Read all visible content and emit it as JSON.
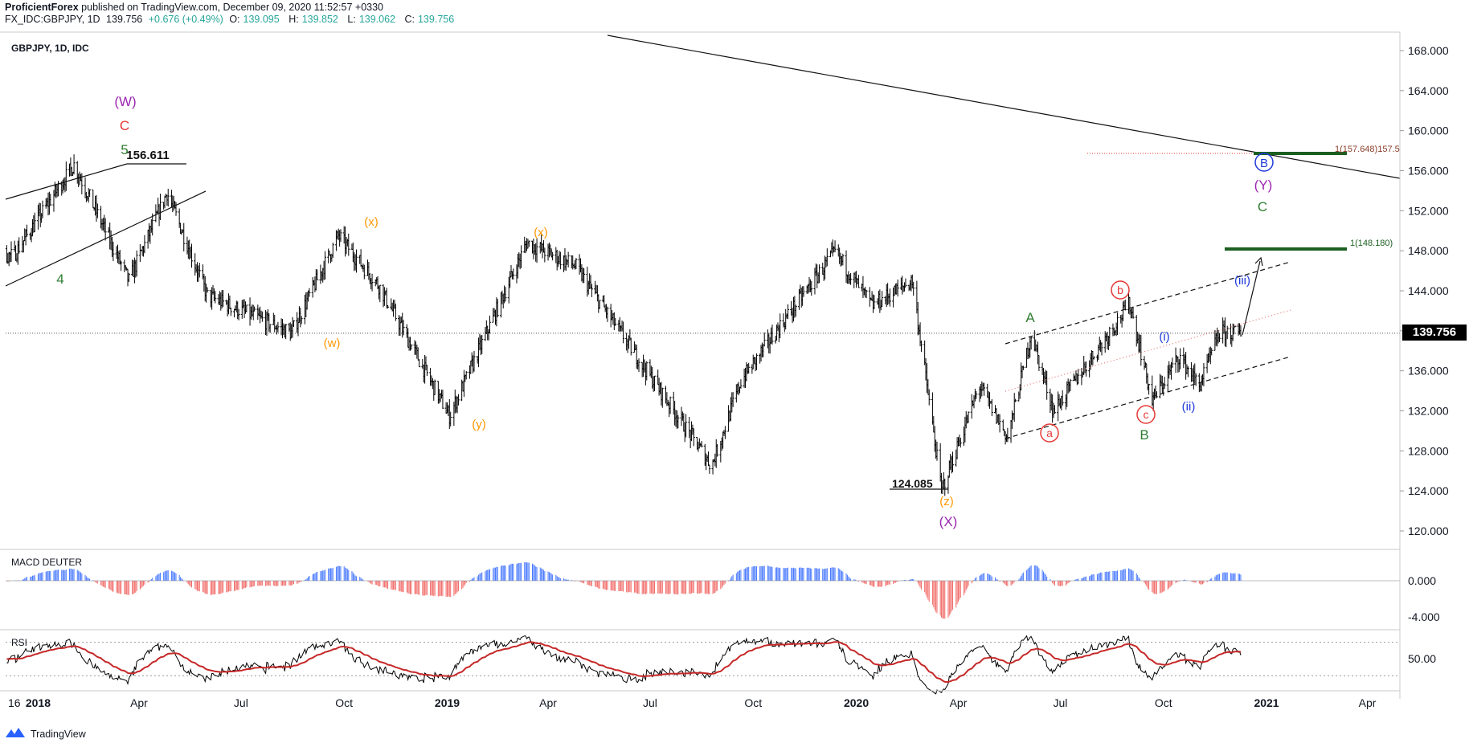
{
  "header": {
    "publisher": "ProficientForex",
    "published_text": "published on TradingView.com, December 09, 2020 11:52:57 +0330",
    "symbol": "FX_IDC:GBPJPY, 1D",
    "last": "139.756",
    "change": "+0.676 (+0.49%)",
    "o_label": "O:",
    "o_value": "139.095",
    "h_label": "H:",
    "h_value": "139.852",
    "l_label": "L:",
    "l_value": "139.062",
    "c_label": "C:",
    "c_value": "139.756",
    "pane_title": "GBPJPY, 1D, IDC"
  },
  "price_axis": {
    "ticks": [
      "168.000",
      "164.000",
      "160.000",
      "156.000",
      "152.000",
      "148.000",
      "144.000",
      "140.000",
      "136.000",
      "132.000",
      "128.000",
      "124.000",
      "120.000"
    ],
    "last_price": "139.756"
  },
  "macd": {
    "title": "MACD DEUTER",
    "ticks": [
      "0.000",
      "-4.000"
    ]
  },
  "rsi": {
    "title": "RSI",
    "ticks": [
      "50.00"
    ]
  },
  "time_axis": [
    "16",
    "2018",
    "Apr",
    "Jul",
    "Oct",
    "2019",
    "Apr",
    "Jul",
    "Oct",
    "2020",
    "Apr",
    "Jul",
    "Oct",
    "2021",
    "Apr"
  ],
  "annotations": {
    "high_label": "156.611",
    "low_label": "124.085",
    "fib_label_1": "1(157.648)157.5",
    "fib_label_2": "1(148.180)",
    "W": "(W)",
    "C_red": "C",
    "five": "5",
    "four": "4",
    "x1": "(x)",
    "w": "(w)",
    "x2": "(x)",
    "y": "(y)",
    "z": "(z)",
    "X": "(X)",
    "A": "A",
    "a": "a",
    "b": "b",
    "c": "c",
    "B_green": "B",
    "i": "(i)",
    "ii": "(ii)",
    "iii": "(iii)",
    "B_circle": "B",
    "Y": "(Y)",
    "C_green": "C"
  },
  "footer": {
    "brand": "TradingView"
  },
  "colors": {
    "up": "#26a69a",
    "macd_pos": "#2962ff",
    "macd_neg": "#ef5350",
    "purple": "#9c27b0",
    "orange": "#ff9800",
    "green": "#2e7d32",
    "red": "#e53935",
    "blue": "#1e3adb"
  },
  "chart_data": {
    "type": "ohlc",
    "symbol": "GBPJPY",
    "timeframe": "1D",
    "x_range": [
      "2017-12",
      "2021-04"
    ],
    "y_range": [
      118,
      170
    ],
    "swing_points": [
      {
        "date": "2017-10-25",
        "price": 148.0
      },
      {
        "date": "2017-12-10",
        "price": 147.5
      },
      {
        "date": "2018-02-02",
        "price": 156.611,
        "label": "(W) C 5"
      },
      {
        "date": "2018-03-23",
        "price": 145.0
      },
      {
        "date": "2018-04-26",
        "price": 153.8
      },
      {
        "date": "2018-06-01",
        "price": 143.5
      },
      {
        "date": "2018-08-15",
        "price": 139.8,
        "label": "(w)"
      },
      {
        "date": "2018-09-26",
        "price": 149.5,
        "label": "(x)"
      },
      {
        "date": "2018-11-01",
        "price": 144.5
      },
      {
        "date": "2019-01-03",
        "price": 131.5,
        "label": "(y)"
      },
      {
        "date": "2019-03-13",
        "price": 148.8,
        "label": "(x)"
      },
      {
        "date": "2019-04-25",
        "price": 146.5
      },
      {
        "date": "2019-08-25",
        "price": 126.5
      },
      {
        "date": "2019-09-20",
        "price": 135.0
      },
      {
        "date": "2019-10-25",
        "price": 140.5
      },
      {
        "date": "2019-12-13",
        "price": 147.9
      },
      {
        "date": "2020-01-15",
        "price": 142.5
      },
      {
        "date": "2020-02-20",
        "price": 145.0
      },
      {
        "date": "2020-03-17",
        "price": 124.085,
        "label": "(z) (X)"
      },
      {
        "date": "2020-04-20",
        "price": 134.5
      },
      {
        "date": "2020-05-15",
        "price": 129.3,
        "label": "a"
      },
      {
        "date": "2020-06-05",
        "price": 139.7,
        "label": "A"
      },
      {
        "date": "2020-06-25",
        "price": 132.0
      },
      {
        "date": "2020-09-01",
        "price": 142.7,
        "label": "b"
      },
      {
        "date": "2020-09-21",
        "price": 133.0,
        "label": "c B"
      },
      {
        "date": "2020-10-15",
        "price": 137.5,
        "label": "(i)"
      },
      {
        "date": "2020-11-02",
        "price": 134.5,
        "label": "(ii)"
      },
      {
        "date": "2020-11-20",
        "price": 139.8
      },
      {
        "date": "2020-12-09",
        "price": 139.756
      }
    ],
    "projection": [
      {
        "date": "2020-12-09",
        "price": 139.7
      },
      {
        "date": "2020-12-20",
        "price": 147.5,
        "label": "(iii)"
      }
    ],
    "targets": [
      {
        "date": "2021-01-01",
        "price": 157.648,
        "label": "B (Y) C"
      },
      {
        "date": "2021-01-01",
        "price": 148.18
      }
    ],
    "macd_range": [
      -4.5,
      2.8
    ],
    "rsi_range": [
      15,
      85
    ]
  }
}
